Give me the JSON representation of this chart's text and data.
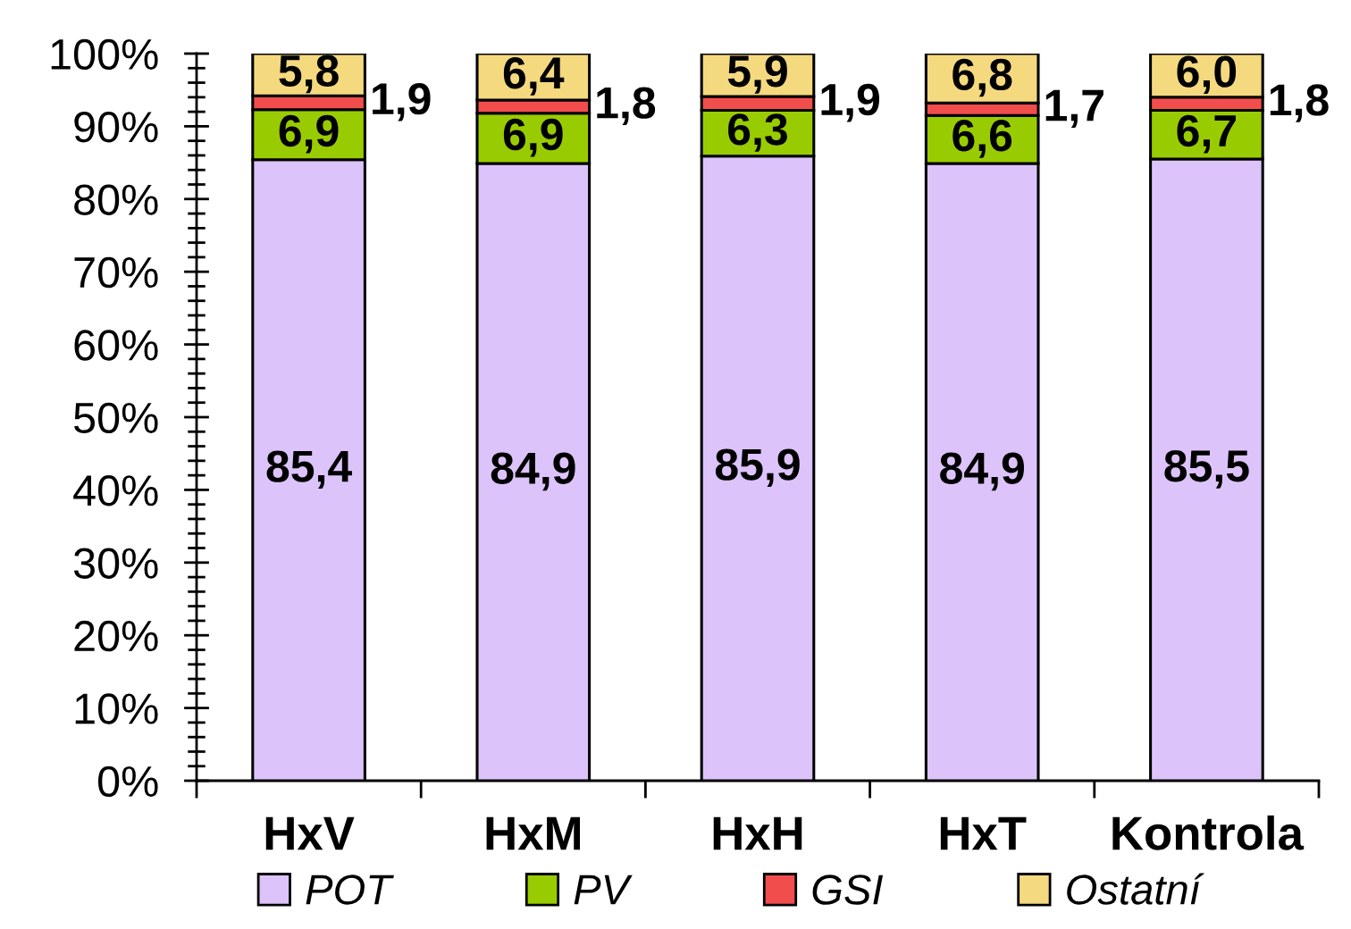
{
  "chart_data": {
    "type": "bar",
    "stacked": true,
    "categories": [
      "HxV",
      "HxM",
      "HxH",
      "HxT",
      "Kontrola"
    ],
    "series": [
      {
        "name": "POT",
        "color": "#dcc3fa",
        "values": [
          85.4,
          84.9,
          85.9,
          84.9,
          85.5
        ],
        "value_labels": [
          "85,4",
          "84,9",
          "85,9",
          "84,9",
          "85,5"
        ]
      },
      {
        "name": "PV",
        "color": "#99cc00",
        "values": [
          6.9,
          6.9,
          6.3,
          6.6,
          6.7
        ],
        "value_labels": [
          "6,9",
          "6,9",
          "6,3",
          "6,6",
          "6,7"
        ]
      },
      {
        "name": "GSI",
        "color": "#f24d4d",
        "values": [
          1.9,
          1.8,
          1.9,
          1.7,
          1.8
        ],
        "value_labels": [
          "1,9",
          "1,8",
          "1,9",
          "1,7",
          "1,8"
        ]
      },
      {
        "name": "Ostatní",
        "color": "#f5d97f",
        "values": [
          5.8,
          6.4,
          5.9,
          6.8,
          6.0
        ],
        "value_labels": [
          "5,8",
          "6,4",
          "5,9",
          "6,8",
          "6,0"
        ]
      }
    ],
    "ylim": [
      0,
      100
    ],
    "yticks": [
      {
        "value": 0,
        "label": "0%"
      },
      {
        "value": 10,
        "label": "10%"
      },
      {
        "value": 20,
        "label": "20%"
      },
      {
        "value": 30,
        "label": "30%"
      },
      {
        "value": 40,
        "label": "40%"
      },
      {
        "value": 50,
        "label": "50%"
      },
      {
        "value": 60,
        "label": "60%"
      },
      {
        "value": 70,
        "label": "70%"
      },
      {
        "value": 80,
        "label": "80%"
      },
      {
        "value": 90,
        "label": "90%"
      },
      {
        "value": 100,
        "label": "100%"
      }
    ],
    "legend": "bottom"
  }
}
